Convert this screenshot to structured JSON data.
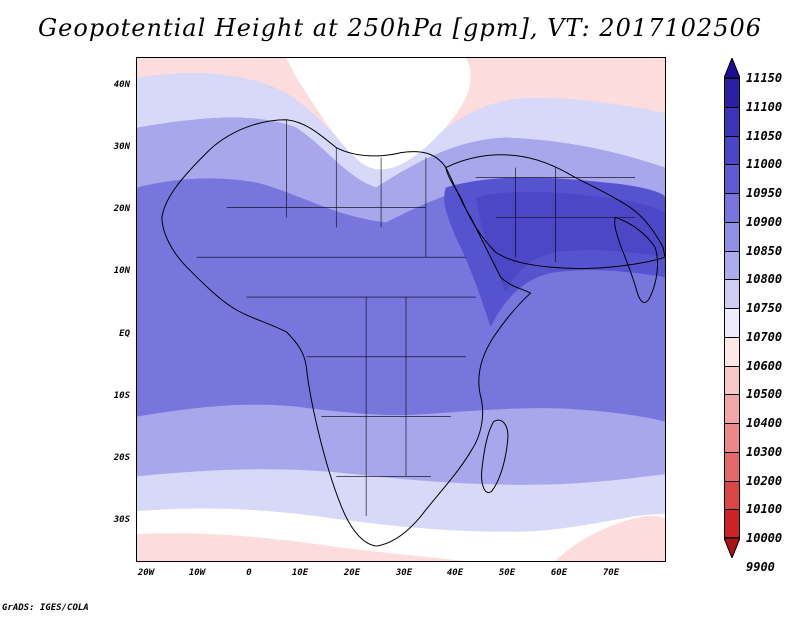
{
  "title": "Geopotential Height at 250hPa [gpm], VT: 2017102506",
  "footer": "GrADS: IGES/COLA",
  "axes": {
    "y_ticks": [
      "40N",
      "30N",
      "20N",
      "10N",
      "EQ",
      "10S",
      "20S",
      "30S"
    ],
    "x_ticks": [
      "20W",
      "10W",
      "0",
      "10E",
      "20E",
      "30E",
      "40E",
      "50E",
      "60E",
      "70E"
    ]
  },
  "colorbar": {
    "labels": [
      "11150",
      "11100",
      "11050",
      "11000",
      "10950",
      "10900",
      "10850",
      "10800",
      "10750",
      "10700",
      "10600",
      "10500",
      "10400",
      "10300",
      "10200",
      "10100",
      "10000",
      "9900"
    ],
    "colors": [
      "#1a0f95",
      "#2b1fa5",
      "#3c33b8",
      "#4a46c6",
      "#5e5bd2",
      "#7775dd",
      "#8f8fe5",
      "#acaced",
      "#cdcdf5",
      "#ececfb",
      "#fde7e7",
      "#f8c9c9",
      "#f1a7a7",
      "#ea8787",
      "#e46868",
      "#dc4545",
      "#cc2424",
      "#a91212"
    ]
  },
  "field_colors": {
    "ocean_default": "#7776dd",
    "deep": "#5653cf",
    "deepest": "#4b47c7",
    "light": "#a9a7ec",
    "pale": "#d8d8f8",
    "white": "#ffffff",
    "pink_light": "#fcdcdc",
    "pink": "#f6b7b7",
    "red": "#ea8e8e",
    "red_core": "#de7171"
  }
}
